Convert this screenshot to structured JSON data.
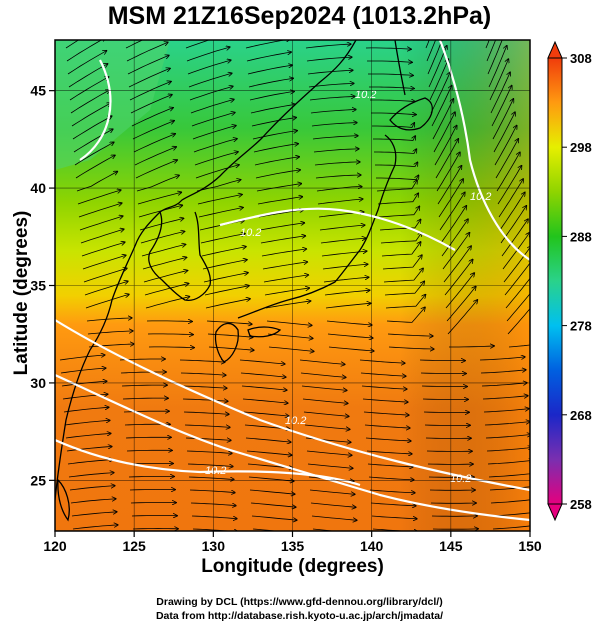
{
  "title": "MSM 21Z16Sep2024 (1013.2hPa)",
  "axes": {
    "xlabel": "Longitude (degrees)",
    "ylabel": "Latitude  (degrees)",
    "x_ticks": [
      "120",
      "125",
      "130",
      "135",
      "140",
      "145",
      "150"
    ],
    "y_ticks": [
      "25",
      "30",
      "35",
      "40",
      "45"
    ],
    "x_range": [
      120,
      150
    ],
    "y_range": [
      22.4,
      47.6
    ]
  },
  "colorbar": {
    "ticks": [
      "258",
      "268",
      "278",
      "288",
      "298",
      "308"
    ],
    "range": [
      258,
      308
    ],
    "colors": [
      "#e5007e",
      "#7a2fb0",
      "#1b27c8",
      "#0072e6",
      "#00c0f0",
      "#2ad28a",
      "#22c41c",
      "#8fd400",
      "#e6ef00",
      "#ffb000",
      "#ff7a10",
      "#f03c0c"
    ]
  },
  "contour_labels": [
    "10.2",
    "10.2",
    "10.2",
    "10.2",
    "10.2",
    "10.2"
  ],
  "credits": {
    "line1": "Drawing by DCL (https://www.gfd-dennou.org/library/dcl/)",
    "line2": "Data from http://database.rish.kyoto-u.ac.jp/arch/jmadata/"
  },
  "colors": {
    "land_outline": "#000000",
    "contour": "#ffffff",
    "frame": "#000000"
  }
}
